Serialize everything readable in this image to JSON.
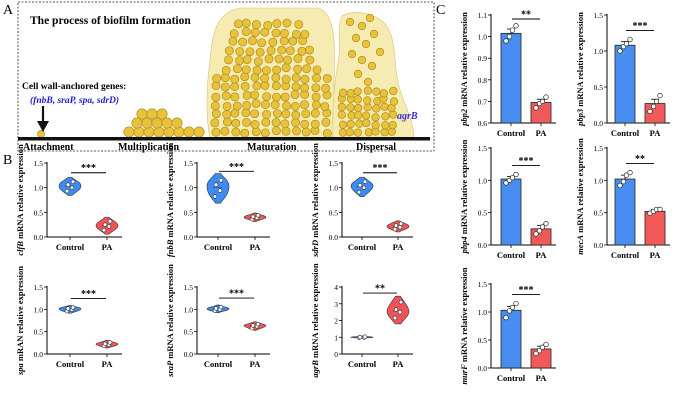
{
  "panel_labels": {
    "a": "A",
    "b": "B",
    "c": "C"
  },
  "panel_a": {
    "title": "The process of biofilm formation",
    "genes_label": "Cell wall-anchored genes:",
    "genes_list": "(fnbB, sraP, spa, sdrD)",
    "agr_label": "agrB",
    "stages": [
      "Attachment",
      "Multiplication",
      "Maturation",
      "Dispersal"
    ],
    "colors": {
      "cell": "#e8c23a",
      "cell_edge": "#a48413",
      "matrix": "#f6ebb0",
      "gene_text": "#1c1cd6",
      "agr_text": "#3a2fd0"
    }
  },
  "colors": {
    "control": "#4a8df0",
    "pa": "#f25a5a",
    "violin_control": "#3d8cf5",
    "violin_pa": "#f05458"
  },
  "chart_data": [
    {
      "id": "clfB",
      "type": "violin",
      "gene": "clfB",
      "ylabel": "clfB mRNA relative expression",
      "categories": [
        "Control",
        "PA"
      ],
      "ylim": [
        0,
        1.5
      ],
      "yticks": [
        "0.0",
        "0.5",
        "1.0",
        "1.5"
      ],
      "significance": "***",
      "control_points": [
        0.93,
        1.0,
        1.06,
        1.12
      ],
      "pa_points": [
        0.14,
        0.21,
        0.25,
        0.32
      ]
    },
    {
      "id": "fnbB",
      "type": "violin",
      "gene": "fnbB",
      "ylabel": "fnbB mRNA relative expression",
      "categories": [
        "Control",
        "PA"
      ],
      "ylim": [
        0,
        1.5
      ],
      "yticks": [
        "0.0",
        "0.5",
        "1.0",
        "1.5"
      ],
      "significance": "***",
      "control_points": [
        0.82,
        0.94,
        1.06,
        1.15
      ],
      "pa_points": [
        0.36,
        0.39,
        0.41,
        0.44
      ]
    },
    {
      "id": "sdrD",
      "type": "violin",
      "gene": "sdrD",
      "ylabel": "sdrD mRNA relative expression",
      "categories": [
        "Control",
        "PA"
      ],
      "ylim": [
        0,
        1.5
      ],
      "yticks": [
        "0.0",
        "0.5",
        "1.0",
        "1.5"
      ],
      "significance": "***",
      "control_points": [
        0.91,
        1.0,
        1.05,
        1.12
      ],
      "pa_points": [
        0.16,
        0.2,
        0.23,
        0.27
      ]
    },
    {
      "id": "spa",
      "type": "violin",
      "gene": "spa",
      "ylabel": "spa mRAN relative expression",
      "categories": [
        "Control",
        "PA"
      ],
      "ylim": [
        0,
        1.5
      ],
      "yticks": [
        "0.0",
        "0.5",
        "1.0",
        "1.5"
      ],
      "significance": "***",
      "control_points": [
        0.96,
        0.99,
        1.02,
        1.04
      ],
      "pa_points": [
        0.18,
        0.21,
        0.23,
        0.26
      ]
    },
    {
      "id": "sraP",
      "type": "violin",
      "gene": "sraP",
      "ylabel": "sraP mRNA relative expression",
      "categories": [
        "Control",
        "PA"
      ],
      "ylim": [
        0,
        1.5
      ],
      "yticks": [
        "0.0",
        "0.5",
        "1.0",
        "1.5"
      ],
      "significance": "***",
      "control_points": [
        0.97,
        1.0,
        1.02,
        1.05
      ],
      "pa_points": [
        0.58,
        0.62,
        0.64,
        0.67
      ]
    },
    {
      "id": "agrB",
      "type": "violin",
      "gene": "agrB",
      "ylabel": "agrB mRNA relative expression",
      "categories": [
        "Control",
        "PA"
      ],
      "ylim": [
        0,
        4
      ],
      "yticks": [
        "0",
        "1",
        "2",
        "3",
        "4"
      ],
      "significance": "**",
      "control_points": [
        0.97,
        0.99,
        1.01,
        1.03
      ],
      "pa_points": [
        2.15,
        2.5,
        2.65,
        3.1
      ]
    },
    {
      "id": "pbp2",
      "type": "bar",
      "gene": "pbp2",
      "ylabel": "pbp2 mRNA relative expression",
      "categories": [
        "Control",
        "PA"
      ],
      "ylim": [
        0.6,
        1.1
      ],
      "yticks": [
        "0.6",
        "0.7",
        "0.8",
        "0.9",
        "1.0",
        "1.1"
      ],
      "significance": "**",
      "values": [
        1.015,
        0.695
      ],
      "errors": [
        0.02,
        0.015
      ],
      "control_points": [
        0.98,
        1.0,
        1.03,
        1.05
      ],
      "pa_points": [
        0.67,
        0.69,
        0.7,
        0.72
      ]
    },
    {
      "id": "pbp3",
      "type": "bar",
      "gene": "pbp3",
      "ylabel": "pbp3 mRNA relative expression",
      "categories": [
        "Control",
        "PA"
      ],
      "ylim": [
        0,
        1.5
      ],
      "yticks": [
        "0.0",
        "0.5",
        "1.0",
        "1.5"
      ],
      "significance": "***",
      "values": [
        1.08,
        0.27
      ],
      "errors": [
        0.05,
        0.06
      ],
      "control_points": [
        1.0,
        1.06,
        1.1,
        1.16
      ],
      "pa_points": [
        0.16,
        0.23,
        0.3,
        0.38
      ]
    },
    {
      "id": "pbp4",
      "type": "bar",
      "gene": "pbp4",
      "ylabel": "pbp4 mRNA relative expression",
      "categories": [
        "Control",
        "PA"
      ],
      "ylim": [
        0,
        1.5
      ],
      "yticks": [
        "0.0",
        "0.5",
        "1.0",
        "1.5"
      ],
      "significance": "***",
      "values": [
        1.02,
        0.25
      ],
      "errors": [
        0.04,
        0.05
      ],
      "control_points": [
        0.96,
        1.0,
        1.04,
        1.09
      ],
      "pa_points": [
        0.17,
        0.22,
        0.28,
        0.33
      ]
    },
    {
      "id": "mecA",
      "type": "bar",
      "gene": "mecA",
      "ylabel": "mecA mRNA relative expression",
      "categories": [
        "Control",
        "PA"
      ],
      "ylim": [
        0,
        1.5
      ],
      "yticks": [
        "0.0",
        "0.5",
        "1.0",
        "1.5"
      ],
      "significance": "**",
      "values": [
        1.02,
        0.52
      ],
      "errors": [
        0.06,
        0.03
      ],
      "control_points": [
        0.92,
        0.98,
        1.08,
        1.12
      ],
      "pa_points": [
        0.49,
        0.52,
        0.55,
        0.55
      ]
    },
    {
      "id": "murF",
      "type": "bar",
      "gene": "murF",
      "ylabel": "murF mRNA relative expression",
      "categories": [
        "Control",
        "PA"
      ],
      "ylim": [
        0,
        1.5
      ],
      "yticks": [
        "0.0",
        "0.5",
        "1.0",
        "1.5"
      ],
      "significance": "***",
      "values": [
        1.03,
        0.34
      ],
      "errors": [
        0.07,
        0.05
      ],
      "control_points": [
        0.9,
        1.02,
        1.08,
        1.15
      ],
      "pa_points": [
        0.26,
        0.31,
        0.37,
        0.42
      ]
    }
  ]
}
